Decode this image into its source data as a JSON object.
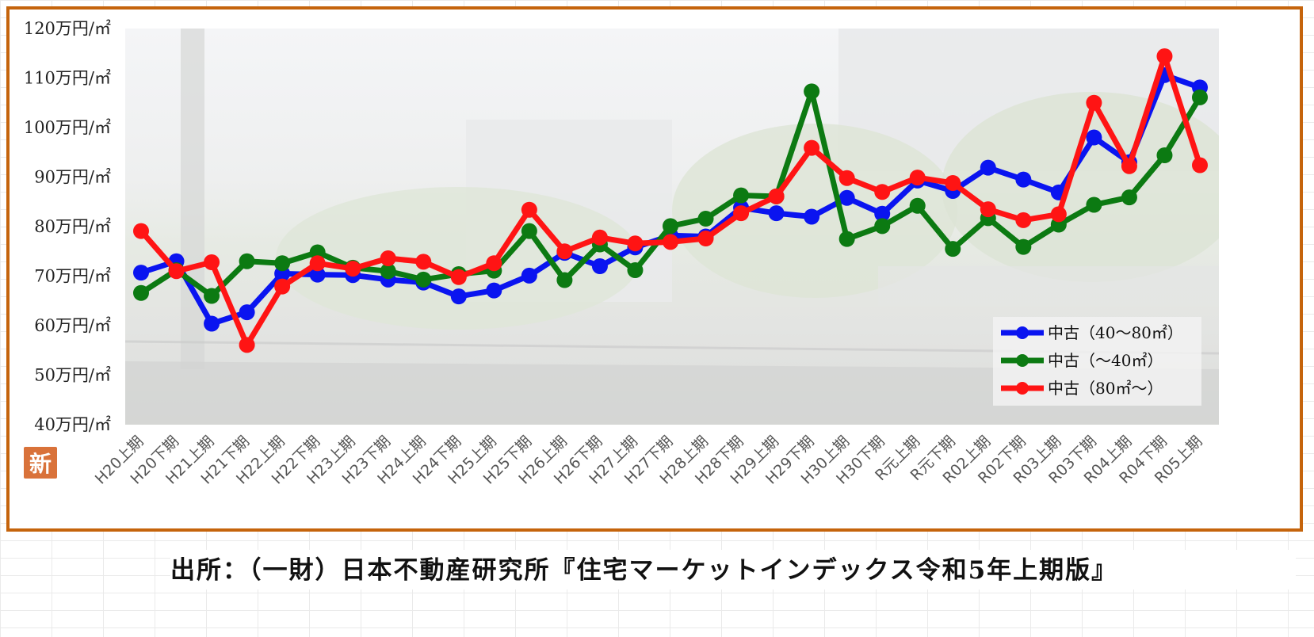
{
  "badge": "新",
  "source_text": "出所：（一財）日本不動産研究所『住宅マーケットインデックス令和5年上期版』",
  "chart_data": {
    "type": "line",
    "title": "",
    "xlabel": "",
    "ylabel": "",
    "ylim": [
      40,
      120
    ],
    "y_ticks": [
      {
        "value": 120,
        "label": "120万円/㎡"
      },
      {
        "value": 110,
        "label": "110万円/㎡"
      },
      {
        "value": 100,
        "label": "100万円/㎡"
      },
      {
        "value": 90,
        "label": "90万円/㎡"
      },
      {
        "value": 80,
        "label": "80万円/㎡"
      },
      {
        "value": 70,
        "label": "70万円/㎡"
      },
      {
        "value": 60,
        "label": "60万円/㎡"
      },
      {
        "value": 50,
        "label": "50万円/㎡"
      },
      {
        "value": 40,
        "label": "40万円/㎡"
      }
    ],
    "categories": [
      "H20上期",
      "H20下期",
      "H21上期",
      "H21下期",
      "H22上期",
      "H22下期",
      "H23上期",
      "H23下期",
      "H24上期",
      "H24下期",
      "H25上期",
      "H25下期",
      "H26上期",
      "H26下期",
      "H27上期",
      "H27下期",
      "H28上期",
      "H28下期",
      "H29上期",
      "H29下期",
      "H30上期",
      "H30下期",
      "R元上期",
      "R元下期",
      "R02上期",
      "R02下期",
      "R03上期",
      "R03下期",
      "R04上期",
      "R04下期",
      "R05上期"
    ],
    "series": [
      {
        "name": "中古（40～80㎡）",
        "color": "#0a14f0",
        "values": [
          70.7,
          73.0,
          60.4,
          62.7,
          70.5,
          70.3,
          70.2,
          69.3,
          68.7,
          65.9,
          67.1,
          70.1,
          74.7,
          72.0,
          75.8,
          78.2,
          78.0,
          83.8,
          82.7,
          82.0,
          85.8,
          82.6,
          89.3,
          87.2,
          91.9,
          89.5,
          86.9,
          98.0,
          93.0,
          110.6,
          108.1
        ]
      },
      {
        "name": "中古（～40㎡）",
        "color": "#0c7a12",
        "values": [
          66.6,
          71.2,
          66.0,
          73.0,
          72.6,
          74.8,
          71.7,
          71.0,
          69.3,
          70.4,
          71.1,
          79.1,
          69.2,
          76.4,
          71.2,
          80.1,
          81.6,
          86.3,
          86.1,
          107.3,
          77.5,
          80.1,
          84.2,
          75.5,
          81.7,
          75.9,
          80.4,
          84.4,
          85.9,
          94.4,
          106.1
        ]
      },
      {
        "name": "中古（80㎡～）",
        "color": "#ff1414",
        "values": [
          79.1,
          71.0,
          72.8,
          56.1,
          67.9,
          72.6,
          71.5,
          73.6,
          72.9,
          69.8,
          72.6,
          83.4,
          75.0,
          77.8,
          76.6,
          76.9,
          77.6,
          82.7,
          86.1,
          95.9,
          89.8,
          87.0,
          89.9,
          88.8,
          83.5,
          81.3,
          82.5,
          105.0,
          92.2,
          114.4,
          92.4
        ]
      }
    ],
    "legend": "bottom-right",
    "grid": false
  }
}
